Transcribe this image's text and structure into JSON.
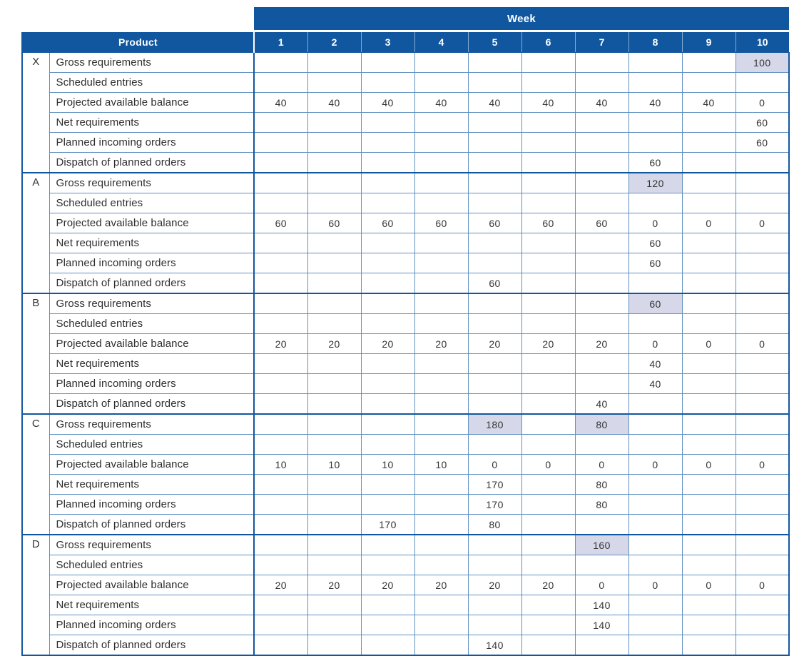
{
  "colors": {
    "header_blue": "#11579F",
    "grid_line": "#5E90C1",
    "header_separator": "#85abd3",
    "highlight_fill": "#D6D8EA",
    "header_text": "#FFFFFF",
    "cell_text": "#333333"
  },
  "table": {
    "week_header_label": "Week",
    "product_header_label": "Product",
    "week_columns": [
      "1",
      "2",
      "3",
      "4",
      "5",
      "6",
      "7",
      "8",
      "9",
      "10"
    ],
    "row_labels": [
      "Gross requirements",
      "Scheduled entries",
      "Projected available balance",
      "Net requirements",
      "Planned incoming orders",
      "Dispatch of planned orders"
    ],
    "products": [
      {
        "letter": "X",
        "rows": [
          {
            "values": [
              "",
              "",
              "",
              "",
              "",
              "",
              "",
              "",
              "",
              "100"
            ],
            "highlight_weeks": [
              10
            ]
          },
          {
            "values": [
              "",
              "",
              "",
              "",
              "",
              "",
              "",
              "",
              "",
              ""
            ],
            "highlight_weeks": []
          },
          {
            "values": [
              "40",
              "40",
              "40",
              "40",
              "40",
              "40",
              "40",
              "40",
              "40",
              "0"
            ],
            "highlight_weeks": []
          },
          {
            "values": [
              "",
              "",
              "",
              "",
              "",
              "",
              "",
              "",
              "",
              "60"
            ],
            "highlight_weeks": []
          },
          {
            "values": [
              "",
              "",
              "",
              "",
              "",
              "",
              "",
              "",
              "",
              "60"
            ],
            "highlight_weeks": []
          },
          {
            "values": [
              "",
              "",
              "",
              "",
              "",
              "",
              "",
              "60",
              "",
              ""
            ],
            "highlight_weeks": []
          }
        ]
      },
      {
        "letter": "A",
        "rows": [
          {
            "values": [
              "",
              "",
              "",
              "",
              "",
              "",
              "",
              "120",
              "",
              ""
            ],
            "highlight_weeks": [
              8
            ]
          },
          {
            "values": [
              "",
              "",
              "",
              "",
              "",
              "",
              "",
              "",
              "",
              ""
            ],
            "highlight_weeks": []
          },
          {
            "values": [
              "60",
              "60",
              "60",
              "60",
              "60",
              "60",
              "60",
              "0",
              "0",
              "0"
            ],
            "highlight_weeks": []
          },
          {
            "values": [
              "",
              "",
              "",
              "",
              "",
              "",
              "",
              "60",
              "",
              ""
            ],
            "highlight_weeks": []
          },
          {
            "values": [
              "",
              "",
              "",
              "",
              "",
              "",
              "",
              "60",
              "",
              ""
            ],
            "highlight_weeks": []
          },
          {
            "values": [
              "",
              "",
              "",
              "",
              "60",
              "",
              "",
              "",
              "",
              ""
            ],
            "highlight_weeks": []
          }
        ]
      },
      {
        "letter": "B",
        "rows": [
          {
            "values": [
              "",
              "",
              "",
              "",
              "",
              "",
              "",
              "60",
              "",
              ""
            ],
            "highlight_weeks": [
              8
            ]
          },
          {
            "values": [
              "",
              "",
              "",
              "",
              "",
              "",
              "",
              "",
              "",
              ""
            ],
            "highlight_weeks": []
          },
          {
            "values": [
              "20",
              "20",
              "20",
              "20",
              "20",
              "20",
              "20",
              "0",
              "0",
              "0"
            ],
            "highlight_weeks": []
          },
          {
            "values": [
              "",
              "",
              "",
              "",
              "",
              "",
              "",
              "40",
              "",
              ""
            ],
            "highlight_weeks": []
          },
          {
            "values": [
              "",
              "",
              "",
              "",
              "",
              "",
              "",
              "40",
              "",
              ""
            ],
            "highlight_weeks": []
          },
          {
            "values": [
              "",
              "",
              "",
              "",
              "",
              "",
              "40",
              "",
              "",
              ""
            ],
            "highlight_weeks": []
          }
        ]
      },
      {
        "letter": "C",
        "rows": [
          {
            "values": [
              "",
              "",
              "",
              "",
              "180",
              "",
              "80",
              "",
              "",
              ""
            ],
            "highlight_weeks": [
              5,
              7
            ]
          },
          {
            "values": [
              "",
              "",
              "",
              "",
              "",
              "",
              "",
              "",
              "",
              ""
            ],
            "highlight_weeks": []
          },
          {
            "values": [
              "10",
              "10",
              "10",
              "10",
              "0",
              "0",
              "0",
              "0",
              "0",
              "0"
            ],
            "highlight_weeks": []
          },
          {
            "values": [
              "",
              "",
              "",
              "",
              "170",
              "",
              "80",
              "",
              "",
              ""
            ],
            "highlight_weeks": []
          },
          {
            "values": [
              "",
              "",
              "",
              "",
              "170",
              "",
              "80",
              "",
              "",
              ""
            ],
            "highlight_weeks": []
          },
          {
            "values": [
              "",
              "",
              "170",
              "",
              "80",
              "",
              "",
              "",
              "",
              ""
            ],
            "highlight_weeks": []
          }
        ]
      },
      {
        "letter": "D",
        "rows": [
          {
            "values": [
              "",
              "",
              "",
              "",
              "",
              "",
              "160",
              "",
              "",
              ""
            ],
            "highlight_weeks": [
              7
            ]
          },
          {
            "values": [
              "",
              "",
              "",
              "",
              "",
              "",
              "",
              "",
              "",
              ""
            ],
            "highlight_weeks": []
          },
          {
            "values": [
              "20",
              "20",
              "20",
              "20",
              "20",
              "20",
              "0",
              "0",
              "0",
              "0"
            ],
            "highlight_weeks": []
          },
          {
            "values": [
              "",
              "",
              "",
              "",
              "",
              "",
              "140",
              "",
              "",
              ""
            ],
            "highlight_weeks": []
          },
          {
            "values": [
              "",
              "",
              "",
              "",
              "",
              "",
              "140",
              "",
              "",
              ""
            ],
            "highlight_weeks": []
          },
          {
            "values": [
              "",
              "",
              "",
              "",
              "140",
              "",
              "",
              "",
              "",
              ""
            ],
            "highlight_weeks": []
          }
        ]
      }
    ]
  }
}
